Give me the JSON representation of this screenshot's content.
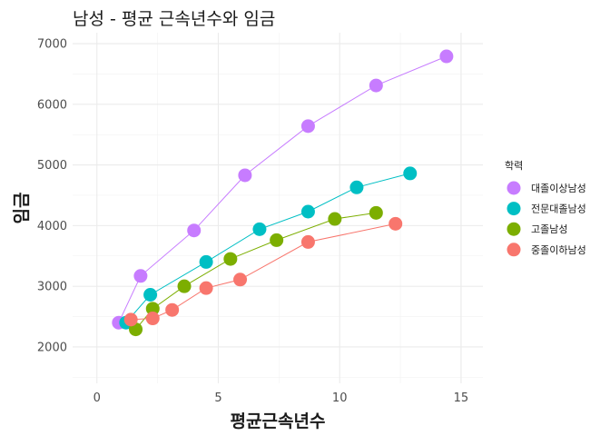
{
  "chart_data": {
    "type": "line",
    "title": "남성 - 평균 근속년수와 임금",
    "xlabel": "평균근속년수",
    "ylabel": "임금",
    "xlim": [
      -1.0,
      15.9
    ],
    "ylim": [
      1400,
      7180
    ],
    "x_ticks": [
      0,
      5,
      10,
      15
    ],
    "y_ticks": [
      2000,
      3000,
      4000,
      5000,
      6000,
      7000
    ],
    "grid": true,
    "legend_title": "학력",
    "legend_position": "right",
    "series": [
      {
        "name": "대졸이상남성",
        "color": "#C77CFF",
        "x": [
          0.9,
          1.8,
          4.0,
          6.1,
          8.7,
          11.5,
          14.4
        ],
        "y": [
          2400,
          3170,
          3920,
          4830,
          5640,
          6310,
          6790
        ]
      },
      {
        "name": "전문대졸남성",
        "color": "#00BFC4",
        "x": [
          1.2,
          2.2,
          4.5,
          6.7,
          8.7,
          10.7,
          12.9
        ],
        "y": [
          2400,
          2860,
          3400,
          3940,
          4230,
          4630,
          4860
        ]
      },
      {
        "name": "고졸남성",
        "color": "#7CAE00",
        "x": [
          1.6,
          2.3,
          3.6,
          5.5,
          7.4,
          9.8,
          11.5
        ],
        "y": [
          2290,
          2630,
          3000,
          3450,
          3760,
          4110,
          4210
        ]
      },
      {
        "name": "중졸이하남성",
        "color": "#F8766D",
        "x": [
          1.4,
          2.3,
          3.1,
          4.5,
          5.9,
          8.7,
          12.3
        ],
        "y": [
          2450,
          2470,
          2610,
          2970,
          3110,
          3730,
          4030
        ]
      }
    ]
  }
}
